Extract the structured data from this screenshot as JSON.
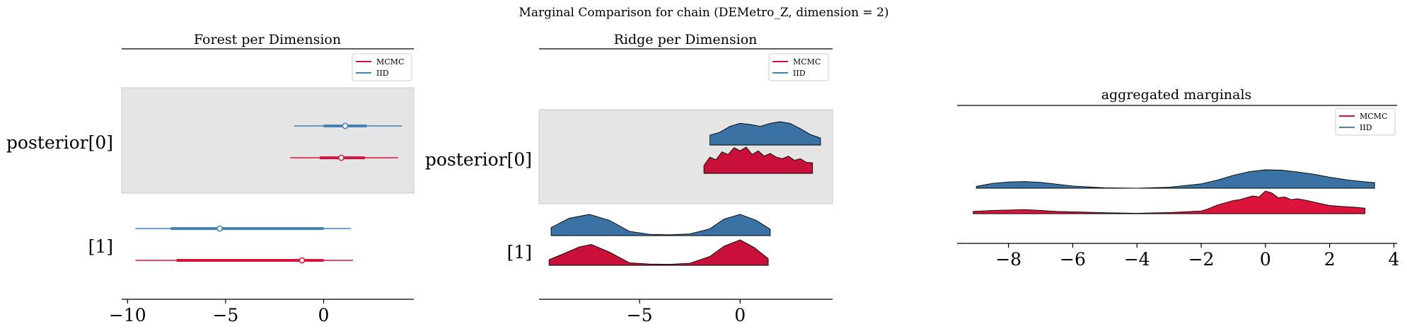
{
  "figure": {
    "suptitle": "Marginal Comparison for chain (DEMetro_Z, dimension = 2)"
  },
  "colors": {
    "mcmc": "#dc143c",
    "iid": "#4682b4",
    "ridge_mcmc": "#c8103a",
    "ridge_iid": "#3b72a4",
    "band": "#e5e5e5",
    "outline": "#000000"
  },
  "chart_data": [
    {
      "type": "forest",
      "title": "Forest per Dimension",
      "legend": [
        "MCMC",
        "IID"
      ],
      "legend_position": "top-right",
      "xlim": [
        -10.3,
        4.6
      ],
      "xticks": [
        {
          "value": -10,
          "label": "−10"
        },
        {
          "value": -5,
          "label": "−5"
        },
        {
          "value": 0,
          "label": "0"
        }
      ],
      "rows": [
        {
          "label": "posterior[0]",
          "shaded": true,
          "series": [
            {
              "name": "IID",
              "hdi94": [
                -1.5,
                4.0
              ],
              "hdi50": [
                0.0,
                2.2
              ],
              "point": 1.1
            },
            {
              "name": "MCMC",
              "hdi94": [
                -1.7,
                3.8
              ],
              "hdi50": [
                -0.2,
                2.1
              ],
              "point": 0.9
            }
          ]
        },
        {
          "label": "[1]",
          "shaded": false,
          "series": [
            {
              "name": "IID",
              "hdi94": [
                -9.6,
                1.4
              ],
              "hdi50": [
                -7.8,
                0.0
              ],
              "point": -5.3
            },
            {
              "name": "MCMC",
              "hdi94": [
                -9.6,
                1.5
              ],
              "hdi50": [
                -7.5,
                0.0
              ],
              "point": -1.1
            }
          ]
        }
      ]
    },
    {
      "type": "ridge",
      "title": "Ridge per Dimension",
      "legend": [
        "MCMC",
        "IID"
      ],
      "legend_position": "top-right",
      "xlim": [
        -10.0,
        4.6
      ],
      "xticks": [
        {
          "value": -5,
          "label": "−5"
        },
        {
          "value": 0,
          "label": "0"
        }
      ],
      "rows": [
        {
          "label": "posterior[0]",
          "shaded": true,
          "series": [
            {
              "name": "IID",
              "x": [
                -1.5,
                -1.0,
                -0.5,
                0.0,
                0.5,
                1.0,
                1.5,
                2.0,
                2.5,
                3.0,
                3.5,
                4.0
              ],
              "density": [
                0.42,
                0.55,
                0.8,
                0.93,
                0.88,
                0.8,
                0.93,
                1.0,
                0.92,
                0.7,
                0.45,
                0.3
              ]
            },
            {
              "name": "MCMC",
              "x": [
                -1.8,
                -1.5,
                -1.2,
                -0.9,
                -0.6,
                -0.3,
                0.0,
                0.3,
                0.6,
                0.9,
                1.2,
                1.5,
                1.8,
                2.1,
                2.4,
                2.7,
                3.0,
                3.3,
                3.6
              ],
              "density": [
                0.3,
                0.62,
                0.52,
                0.82,
                0.72,
                0.98,
                0.86,
                1.0,
                0.72,
                0.86,
                0.66,
                0.76,
                0.62,
                0.56,
                0.66,
                0.5,
                0.56,
                0.42,
                0.4
              ]
            }
          ]
        },
        {
          "label": "[1]",
          "shaded": false,
          "series": [
            {
              "name": "IID",
              "x": [
                -9.4,
                -8.5,
                -7.5,
                -6.5,
                -5.5,
                -4.5,
                -3.5,
                -2.5,
                -1.5,
                -0.8,
                0.0,
                0.8,
                1.5
              ],
              "density": [
                0.38,
                0.82,
                1.0,
                0.72,
                0.2,
                0.06,
                0.04,
                0.08,
                0.32,
                0.78,
                1.0,
                0.72,
                0.3
              ]
            },
            {
              "name": "MCMC",
              "x": [
                -9.5,
                -8.8,
                -8.0,
                -7.4,
                -6.5,
                -5.5,
                -4.5,
                -3.5,
                -2.5,
                -1.5,
                -0.8,
                0.0,
                0.7,
                1.4
              ],
              "density": [
                0.22,
                0.45,
                0.72,
                0.82,
                0.52,
                0.1,
                0.05,
                0.04,
                0.08,
                0.35,
                0.75,
                1.0,
                0.7,
                0.26
              ]
            }
          ]
        }
      ]
    },
    {
      "type": "ridge",
      "title": "aggregated marginals",
      "legend": [
        "MCMC",
        "IID"
      ],
      "legend_position": "top-right",
      "xlim": [
        -9.6,
        4.1
      ],
      "xticks": [
        {
          "value": -8,
          "label": "−8"
        },
        {
          "value": -6,
          "label": "−6"
        },
        {
          "value": -4,
          "label": "−4"
        },
        {
          "value": -2,
          "label": "−2"
        },
        {
          "value": 0,
          "label": "0"
        },
        {
          "value": 2,
          "label": "2"
        },
        {
          "value": 4,
          "label": "4"
        }
      ],
      "rows": [
        {
          "label": "",
          "shaded": false,
          "series": [
            {
              "name": "IID",
              "x": [
                -9.0,
                -8.5,
                -8.0,
                -7.5,
                -7.0,
                -6.5,
                -6.0,
                -5.0,
                -4.0,
                -3.0,
                -2.0,
                -1.5,
                -1.0,
                -0.5,
                0.0,
                0.5,
                1.0,
                1.5,
                2.0,
                2.5,
                3.0,
                3.4
              ],
              "density": [
                0.1,
                0.26,
                0.34,
                0.36,
                0.32,
                0.22,
                0.12,
                0.02,
                0.0,
                0.05,
                0.24,
                0.44,
                0.7,
                0.9,
                1.0,
                0.98,
                0.88,
                0.76,
                0.6,
                0.46,
                0.36,
                0.3
              ]
            },
            {
              "name": "MCMC",
              "x": [
                -9.1,
                -8.5,
                -8.0,
                -7.5,
                -7.0,
                -6.5,
                -6.0,
                -5.0,
                -4.0,
                -3.0,
                -2.0,
                -1.8,
                -1.5,
                -1.2,
                -1.0,
                -0.8,
                -0.6,
                -0.4,
                -0.2,
                0.0,
                0.2,
                0.4,
                0.6,
                0.8,
                1.0,
                1.3,
                1.6,
                2.0,
                2.4,
                2.8,
                3.1
              ],
              "density": [
                0.1,
                0.14,
                0.16,
                0.18,
                0.14,
                0.1,
                0.08,
                0.04,
                0.02,
                0.05,
                0.12,
                0.2,
                0.38,
                0.5,
                0.58,
                0.62,
                0.7,
                0.78,
                0.74,
                1.0,
                0.92,
                0.7,
                0.74,
                0.62,
                0.66,
                0.58,
                0.48,
                0.36,
                0.32,
                0.28,
                0.24
              ]
            }
          ]
        }
      ]
    }
  ]
}
